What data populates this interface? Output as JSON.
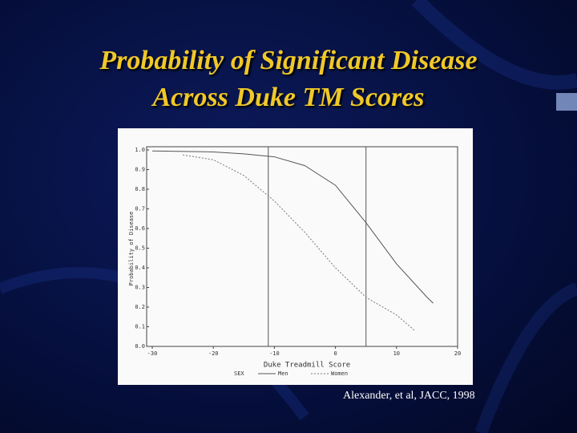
{
  "chart_data": {
    "type": "line",
    "title": [
      "Probability of Significant Disease",
      "Across Duke TM Scores"
    ],
    "xlabel": "Duke Treadmill Score",
    "ylabel": "Probability of Disease",
    "legend_title": "SEX",
    "annotation": "Alexander, et al, JACC, 1998",
    "xlim": [
      -30,
      20
    ],
    "ylim": [
      0,
      1
    ],
    "xticks": [
      -30,
      -20,
      -10,
      0,
      10,
      20
    ],
    "yticks": [
      {
        "value": 0,
        "label": "0.0"
      },
      0.1,
      0.2,
      0.3,
      0.4,
      0.5,
      0.6,
      0.7,
      0.8,
      0.9,
      {
        "value": 1,
        "label": "1.0"
      }
    ],
    "vlines": [
      -11,
      5
    ],
    "series": [
      {
        "name": "Men",
        "color": "#555555",
        "dash": "none",
        "x": [
          -30,
          -20,
          -15,
          -10,
          -5,
          0,
          5,
          10,
          15,
          16
        ],
        "values": [
          0.995,
          0.99,
          0.98,
          0.965,
          0.92,
          0.82,
          0.63,
          0.42,
          0.25,
          0.22
        ]
      },
      {
        "name": "Women",
        "color": "#777777",
        "dash": "2 2",
        "x": [
          -25,
          -20,
          -15,
          -10,
          -5,
          0,
          5,
          10,
          13
        ],
        "values": [
          0.975,
          0.95,
          0.87,
          0.74,
          0.58,
          0.4,
          0.25,
          0.16,
          0.08
        ]
      }
    ]
  }
}
